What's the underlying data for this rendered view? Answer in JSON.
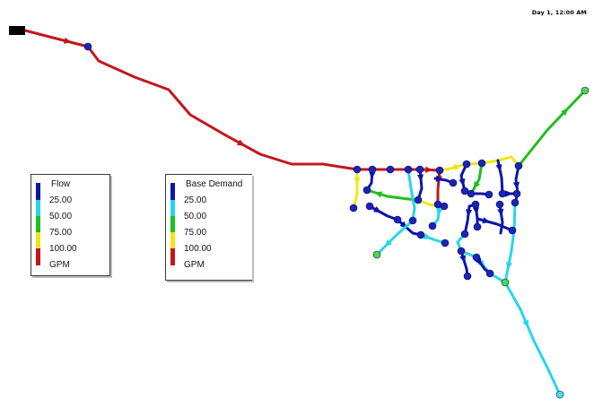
{
  "timestamp": "Day 1, 12:00 AM",
  "colors": {
    "level0": "#0c16ac",
    "level1": "#27d6e9",
    "level2": "#1fbf1f",
    "level3": "#f0e617",
    "level4": "#c4161c",
    "node_green": "#4cd84c",
    "node_cyan": "#43e0ea",
    "node_blue": "#1a24b8"
  },
  "legends": {
    "flow": {
      "title": "Flow",
      "breaks": [
        "25.00",
        "50.00",
        "75.00",
        "100.00"
      ],
      "unit": "GPM"
    },
    "demand": {
      "title": "Base Demand",
      "breaks": [
        "25.00",
        "50.00",
        "75.00",
        "100.00"
      ],
      "unit": "GPM"
    }
  }
}
